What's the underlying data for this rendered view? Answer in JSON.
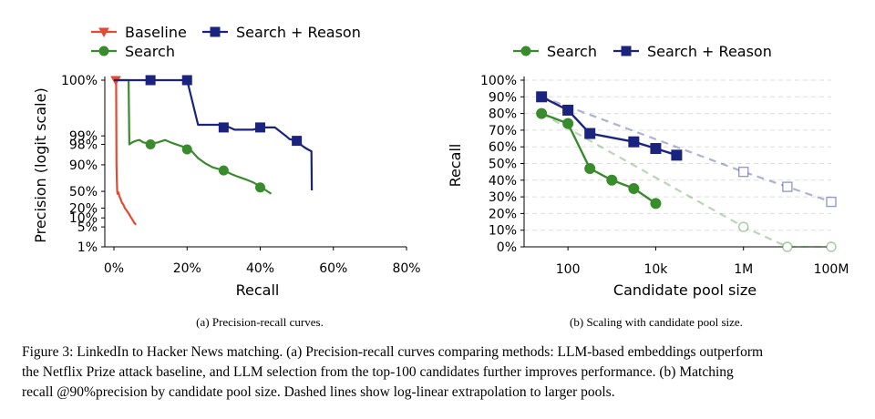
{
  "chart_data": [
    {
      "type": "line",
      "title": "",
      "xlabel": "Recall",
      "ylabel": "Precision (logit scale)",
      "xlim": [
        0,
        80
      ],
      "x_ticks": [
        0,
        20,
        40,
        60,
        80
      ],
      "x_tick_labels": [
        "0%",
        "20%",
        "40%",
        "60%",
        "80%"
      ],
      "y_scale": "logit",
      "y_ticks": [
        1,
        5,
        10,
        20,
        50,
        90,
        98,
        99,
        100
      ],
      "y_tick_labels": [
        "1%",
        "5%",
        "10%",
        "20%",
        "50%",
        "90%",
        "98%",
        "99%",
        "100%"
      ],
      "legend_position": "top",
      "series": [
        {
          "name": "Baseline",
          "color": "#e24a33",
          "marker": "triangle-down",
          "x": [
            0,
            0.6,
            0.7,
            0.8,
            0.9,
            1.0,
            1.2,
            1.5,
            1.8,
            2.2,
            2.6,
            3.0,
            3.5,
            4.0,
            4.5,
            5.0,
            5.5,
            6.0
          ],
          "y": [
            100,
            100,
            90,
            70,
            50,
            45,
            48,
            40,
            35,
            28,
            25,
            20,
            17,
            14,
            11,
            9,
            7,
            6
          ],
          "marker_x": [
            0.5
          ],
          "marker_y": [
            100
          ]
        },
        {
          "name": "Search",
          "color": "#3a8a2e",
          "marker": "circle",
          "x": [
            0,
            4,
            4.2,
            5,
            6,
            7,
            8,
            10,
            12,
            14,
            16,
            18,
            20,
            21,
            23,
            25,
            27,
            29,
            30,
            32,
            34,
            36,
            38,
            40,
            41,
            42,
            43
          ],
          "y": [
            100,
            100,
            98,
            98.3,
            98.5,
            98.6,
            98.3,
            98.1,
            98.3,
            98.6,
            98.2,
            97.8,
            97.3,
            96.8,
            94,
            91,
            88,
            86,
            85,
            81,
            77,
            73,
            68,
            60,
            55,
            50,
            45
          ],
          "marker_x": [
            10,
            20,
            30,
            40
          ],
          "marker_y": [
            98,
            97,
            85,
            58
          ]
        },
        {
          "name": "Search + Reason",
          "color": "#1a237e",
          "marker": "square",
          "x": [
            0,
            10,
            20,
            23,
            30,
            33,
            38,
            40,
            44,
            47,
            48,
            50,
            51,
            52,
            53,
            54,
            54.1
          ],
          "y": [
            100,
            100,
            100,
            99.6,
            99.6,
            99.4,
            99.4,
            99.5,
            99.5,
            99.0,
            98.7,
            98.5,
            98.0,
            97.5,
            97.0,
            96.5,
            52
          ],
          "marker_x": [
            10,
            20,
            30,
            40,
            50
          ],
          "marker_y": [
            100,
            100,
            99.5,
            99.5,
            98.5
          ]
        }
      ]
    },
    {
      "type": "line",
      "title": "",
      "xlabel": "Candidate pool size",
      "ylabel": "Recall",
      "x_scale": "log",
      "xlim": [
        10,
        100000000
      ],
      "x_ticks": [
        100,
        10000,
        1000000,
        100000000
      ],
      "x_tick_labels": [
        "100",
        "10k",
        "1M",
        "100M"
      ],
      "ylim": [
        0,
        100
      ],
      "y_ticks": [
        0,
        10,
        20,
        30,
        40,
        50,
        60,
        70,
        80,
        90,
        100
      ],
      "y_tick_labels": [
        "0%",
        "10%",
        "20%",
        "30%",
        "40%",
        "50%",
        "60%",
        "70%",
        "80%",
        "90%",
        "100%"
      ],
      "grid": true,
      "legend_position": "top",
      "series": [
        {
          "name": "Search",
          "color": "#3a8a2e",
          "marker": "circle",
          "x": [
            25,
            100,
            316,
            1000,
            3162,
            10000
          ],
          "y": [
            80,
            74,
            47,
            40,
            35,
            26
          ],
          "extrapolation": {
            "x": [
              25,
              1000000,
              10000000,
              100000000
            ],
            "y": [
              80,
              12,
              0,
              0
            ]
          }
        },
        {
          "name": "Search + Reason",
          "color": "#1a237e",
          "marker": "square",
          "x": [
            25,
            100,
            316,
            3162,
            10000,
            30000
          ],
          "y": [
            90,
            82,
            68,
            63,
            59,
            55
          ],
          "extrapolation": {
            "x": [
              25,
              1000000,
              10000000,
              100000000
            ],
            "y": [
              90,
              45,
              36,
              27
            ]
          }
        }
      ]
    }
  ],
  "subcaptions": {
    "a": "(a) Precision-recall curves.",
    "b": "(b) Scaling with candidate pool size."
  },
  "caption": {
    "line1": "Figure 3: LinkedIn to Hacker News matching. (a) Precision-recall curves comparing methods: LLM-based embeddings outperform",
    "line2": "the Netflix Prize attack baseline, and LLM selection from the top-100 candidates further improves performance. (b) Matching",
    "line3": "recall @90%precision by candidate pool size. Dashed lines show log-linear extrapolation to larger pools."
  }
}
